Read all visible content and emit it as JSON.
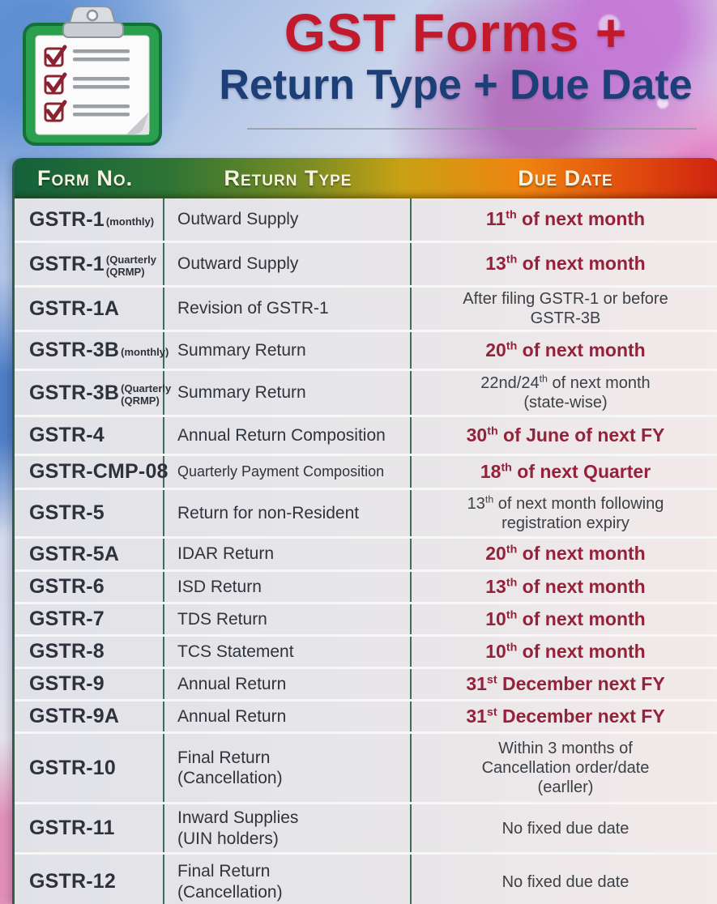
{
  "page": {
    "title_line1": "GST Forms +",
    "title_line2": "Return Type + Due Date"
  },
  "colors": {
    "title1": "#c21a2c",
    "title2": "#1c3f77",
    "header_gradient": [
      "#14613b",
      "#c9a114",
      "#ef8410",
      "#cf2310"
    ],
    "due_red": "#93223a",
    "due_dark": "#3b4046",
    "divider_green": "#3b6e58"
  },
  "icon": {
    "name": "clipboard-checklist-icon"
  },
  "table": {
    "headers": [
      "Form No.",
      "Return Type",
      "Due Date"
    ],
    "rows": [
      {
        "form": "GSTR-1",
        "form_sub": [
          "(monthly)"
        ],
        "type": [
          "Outward Supply"
        ],
        "due": [
          "11{th} of next month"
        ],
        "due_red": true
      },
      {
        "form": "GSTR-1",
        "form_sub": [
          "(Quarterly",
          "(QRMP)"
        ],
        "type": [
          "Outward Supply"
        ],
        "due": [
          "13{th} of next month"
        ],
        "due_red": true
      },
      {
        "form": "GSTR-1A",
        "form_sub": [],
        "type": [
          "Revision of GSTR-1"
        ],
        "due": [
          "After filing GSTR-1 or before",
          "GSTR-3B"
        ],
        "due_red": false
      },
      {
        "form": "GSTR-3B",
        "form_sub": [
          "(monthly)"
        ],
        "type": [
          "Summary Return"
        ],
        "due": [
          "20{th} of next month"
        ],
        "due_red": true
      },
      {
        "form": "GSTR-3B",
        "form_sub": [
          "(Quarterly",
          "(QRMP)"
        ],
        "type": [
          "Summary Return"
        ],
        "due": [
          "22nd/24{th} of next month",
          "(state-wise)"
        ],
        "due_red": false
      },
      {
        "form": "GSTR-4",
        "form_sub": [],
        "type": [
          "Annual Return Composition"
        ],
        "due": [
          "30{th} of June of next FY"
        ],
        "due_red": true
      },
      {
        "form": "GSTR-CMP-08",
        "form_sub": [],
        "type": [
          "Quarterly Payment Composition"
        ],
        "due": [
          "18{th} of next Quarter"
        ],
        "due_red": true
      },
      {
        "form": "GSTR-5",
        "form_sub": [],
        "type": [
          "Return for non-Resident"
        ],
        "due": [
          "13{th} of next month following",
          "registration expiry"
        ],
        "due_red": false
      },
      {
        "form": "GSTR-5A",
        "form_sub": [],
        "type": [
          "IDAR Return"
        ],
        "due": [
          "20{th} of next month"
        ],
        "due_red": true
      },
      {
        "form": "GSTR-6",
        "form_sub": [],
        "type": [
          "ISD Return"
        ],
        "due": [
          "13{th} of next month"
        ],
        "due_red": true
      },
      {
        "form": "GSTR-7",
        "form_sub": [],
        "type": [
          "TDS Return"
        ],
        "due": [
          "10{th} of next month"
        ],
        "due_red": true
      },
      {
        "form": "GSTR-8",
        "form_sub": [],
        "type": [
          "TCS Statement"
        ],
        "due": [
          "10{th} of next month"
        ],
        "due_red": true
      },
      {
        "form": "GSTR-9",
        "form_sub": [],
        "type": [
          "Annual Return"
        ],
        "due": [
          "31{st} December next FY"
        ],
        "due_red": true
      },
      {
        "form": "GSTR-9A",
        "form_sub": [],
        "type": [
          "Annual Return"
        ],
        "due": [
          "31{st} December next FY"
        ],
        "due_red": true
      },
      {
        "form": "GSTR-10",
        "form_sub": [],
        "type": [
          "Final Return",
          "(Cancellation)"
        ],
        "due": [
          "Within 3 months of",
          "Cancellation order/date",
          "(earller)"
        ],
        "due_red": false
      },
      {
        "form": "GSTR-11",
        "form_sub": [],
        "type": [
          "Inward Supplies",
          "(UIN holders)"
        ],
        "due": [
          "No fixed due date"
        ],
        "due_red": false
      },
      {
        "form": "GSTR-12",
        "form_sub": [],
        "type": [
          "Final Return",
          "(Cancellation)"
        ],
        "due": [
          "No fixed due date"
        ],
        "due_red": false
      }
    ]
  }
}
